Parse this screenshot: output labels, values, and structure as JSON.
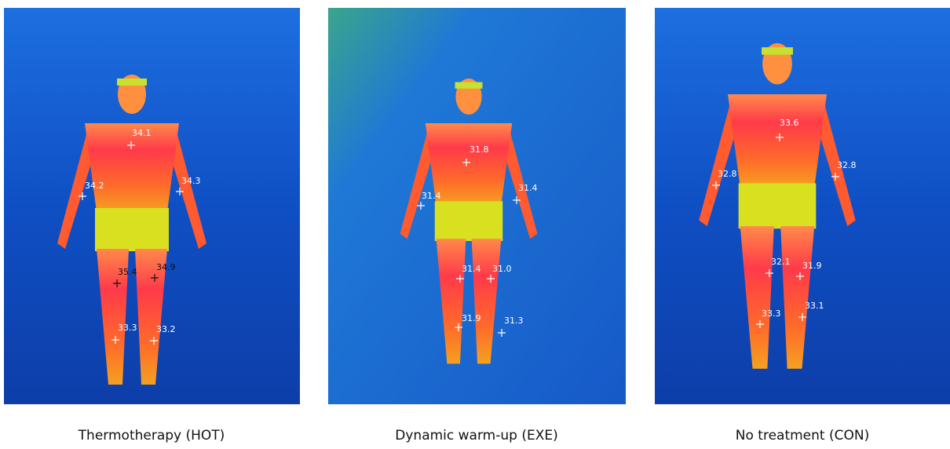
{
  "panels": [
    {
      "caption": "Thermotherapy (HOT)",
      "readings": [
        "34.1",
        "34.2",
        "34.3",
        "35.4",
        "34.9",
        "33.3",
        "33.2"
      ]
    },
    {
      "caption": "Dynamic warm-up (EXE)",
      "readings": [
        "31.8",
        "31.4",
        "31.4",
        "31.4",
        "31.0",
        "31.9",
        "31.3"
      ]
    },
    {
      "caption": "No treatment (CON)",
      "readings": [
        "33.6",
        "32.8",
        "32.8",
        "32.1",
        "31.9",
        "33.3",
        "33.1"
      ]
    }
  ]
}
